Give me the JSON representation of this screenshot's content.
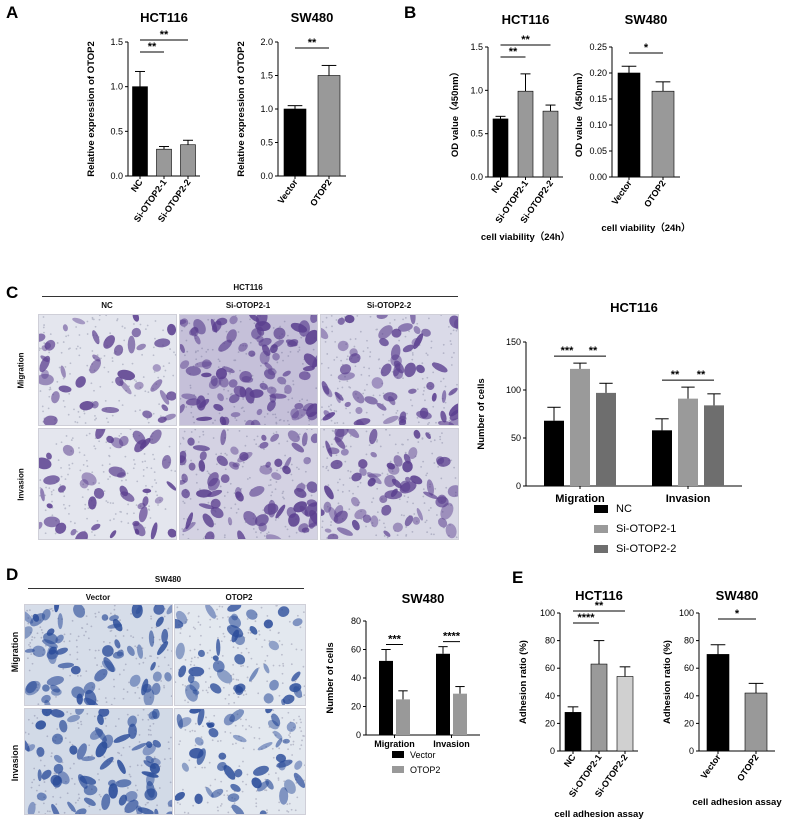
{
  "panel_labels": [
    "A",
    "B",
    "C",
    "D",
    "E"
  ],
  "chart_data": [
    {
      "id": "a1",
      "panel": "A",
      "type": "bar",
      "title": "HCT116",
      "categories": [
        "NC",
        "Si-OTOP2-1",
        "Si-OTOP2-2"
      ],
      "values": [
        1.0,
        0.3,
        0.35
      ],
      "errors": [
        0.17,
        0.03,
        0.05
      ],
      "colors": [
        "#000000",
        "#999999",
        "#999999"
      ],
      "ylabel": "Relative expression of OTOP2",
      "xlabel": "",
      "ylim": [
        0,
        1.5
      ],
      "yticks": [
        "0.0",
        "0.5",
        "1.0",
        "1.5"
      ],
      "significance": [
        {
          "from": 0,
          "to": 1,
          "label": "**"
        },
        {
          "from": 0,
          "to": 2,
          "label": "**"
        }
      ]
    },
    {
      "id": "a2",
      "panel": "A",
      "type": "bar",
      "title": "SW480",
      "categories": [
        "Vector",
        "OTOP2"
      ],
      "values": [
        1.0,
        1.5
      ],
      "errors": [
        0.05,
        0.15
      ],
      "colors": [
        "#000000",
        "#999999"
      ],
      "ylabel": "Relative expression of OTOP2",
      "xlabel": "",
      "ylim": [
        0,
        2.0
      ],
      "yticks": [
        "0.0",
        "0.5",
        "1.0",
        "1.5",
        "2.0"
      ],
      "significance": [
        {
          "from": 0,
          "to": 1,
          "label": "**"
        }
      ]
    },
    {
      "id": "b1",
      "panel": "B",
      "type": "bar",
      "title": "HCT116",
      "categories": [
        "NC",
        "Si-OTOP2-1",
        "Si-OTOP2-2"
      ],
      "values": [
        0.67,
        0.99,
        0.76
      ],
      "errors": [
        0.03,
        0.2,
        0.07
      ],
      "colors": [
        "#000000",
        "#999999",
        "#999999"
      ],
      "ylabel": "OD value（450nm）",
      "xlabel": "cell viability（24h）",
      "ylim": [
        0,
        1.5
      ],
      "yticks": [
        "0.0",
        "0.5",
        "1.0",
        "1.5"
      ],
      "significance": [
        {
          "from": 0,
          "to": 1,
          "label": "**"
        },
        {
          "from": 0,
          "to": 2,
          "label": "**"
        }
      ]
    },
    {
      "id": "b2",
      "panel": "B",
      "type": "bar",
      "title": "SW480",
      "categories": [
        "Vector",
        "OTOP2"
      ],
      "values": [
        0.2,
        0.165
      ],
      "errors": [
        0.013,
        0.018
      ],
      "colors": [
        "#000000",
        "#999999"
      ],
      "ylabel": "OD value（450nm）",
      "xlabel": "cell viability（24h）",
      "ylim": [
        0,
        0.25
      ],
      "yticks": [
        "0.00",
        "0.05",
        "0.10",
        "0.15",
        "0.20",
        "0.25"
      ],
      "significance": [
        {
          "from": 0,
          "to": 1,
          "label": "*"
        }
      ]
    },
    {
      "id": "c",
      "panel": "C",
      "type": "bar",
      "title": "HCT116",
      "categories": [
        "Migration",
        "Invasion"
      ],
      "series": [
        {
          "name": "NC",
          "values": [
            68,
            58
          ],
          "errors": [
            14,
            12
          ],
          "color": "#000000"
        },
        {
          "name": "Si-OTOP2-1",
          "values": [
            122,
            91
          ],
          "errors": [
            6,
            12
          ],
          "color": "#9a9a9a"
        },
        {
          "name": "Si-OTOP2-2",
          "values": [
            97,
            84
          ],
          "errors": [
            10,
            12
          ],
          "color": "#6e6e6e"
        }
      ],
      "ylabel": "Number of cells",
      "xlabel": "",
      "ylim": [
        0,
        150
      ],
      "yticks": [
        "0",
        "50",
        "100",
        "150"
      ],
      "significance": [
        {
          "group": 0,
          "from": 0,
          "to": 1,
          "label": "***"
        },
        {
          "group": 0,
          "from": 1,
          "to": 2,
          "label": "**"
        },
        {
          "group": 1,
          "from": 0,
          "to": 1,
          "label": "**"
        },
        {
          "group": 1,
          "from": 1,
          "to": 2,
          "label": "**"
        }
      ],
      "legend": "bottom"
    },
    {
      "id": "d",
      "panel": "D",
      "type": "bar",
      "title": "SW480",
      "categories": [
        "Migration",
        "Invasion"
      ],
      "series": [
        {
          "name": "Vector",
          "values": [
            52,
            57
          ],
          "errors": [
            8,
            5
          ],
          "color": "#000000"
        },
        {
          "name": "OTOP2",
          "values": [
            25,
            29
          ],
          "errors": [
            6,
            5
          ],
          "color": "#999999"
        }
      ],
      "ylabel": "Number of cells",
      "xlabel": "",
      "ylim": [
        0,
        80
      ],
      "yticks": [
        "0",
        "20",
        "40",
        "60",
        "80"
      ],
      "significance": [
        {
          "group": 0,
          "from": 0,
          "to": 1,
          "label": "***"
        },
        {
          "group": 1,
          "from": 0,
          "to": 1,
          "label": "****"
        }
      ],
      "legend": "bottom"
    },
    {
      "id": "e1",
      "panel": "E",
      "type": "bar",
      "title": "HCT116",
      "categories": [
        "NC",
        "Si-OTOP2-1",
        "Si-OTOP2-2"
      ],
      "values": [
        28,
        63,
        54
      ],
      "errors": [
        4,
        17,
        7
      ],
      "colors": [
        "#000000",
        "#9a9a9a",
        "#d0d0d0"
      ],
      "ylabel": "Adhesion ratio (%)",
      "xlabel": "cell adhesion assay",
      "ylim": [
        0,
        100
      ],
      "yticks": [
        "0",
        "20",
        "40",
        "60",
        "80",
        "100"
      ],
      "significance": [
        {
          "from": 0,
          "to": 1,
          "label": "****"
        },
        {
          "from": 0,
          "to": 2,
          "label": "**"
        }
      ]
    },
    {
      "id": "e2",
      "panel": "E",
      "type": "bar",
      "title": "SW480",
      "categories": [
        "Vector",
        "OTOP2"
      ],
      "values": [
        70,
        42
      ],
      "errors": [
        7,
        7
      ],
      "colors": [
        "#000000",
        "#999999"
      ],
      "ylabel": "Adhesion ratio (%)",
      "xlabel": "cell adhesion assay",
      "ylim": [
        0,
        100
      ],
      "yticks": [
        "0",
        "20",
        "40",
        "60",
        "80",
        "100"
      ],
      "significance": [
        {
          "from": 0,
          "to": 1,
          "label": "*"
        }
      ]
    }
  ],
  "micrographs": {
    "c": {
      "header": "HCT116",
      "columns": [
        "NC",
        "Si-OTOP2-1",
        "Si-OTOP2-2"
      ],
      "rows": [
        "Migration",
        "Invasion"
      ],
      "densities": [
        [
          0.3,
          0.95,
          0.6
        ],
        [
          0.32,
          0.7,
          0.62
        ]
      ],
      "stain_color": "#5b3f8f",
      "background": "#e4e6ee"
    },
    "d": {
      "header": "SW480",
      "columns": [
        "Vector",
        "OTOP2"
      ],
      "rows": [
        "Migration",
        "Invasion"
      ],
      "densities": [
        [
          0.6,
          0.3
        ],
        [
          0.65,
          0.35
        ]
      ],
      "stain_color": "#2a4c9a",
      "background": "#e3e8ef"
    }
  }
}
